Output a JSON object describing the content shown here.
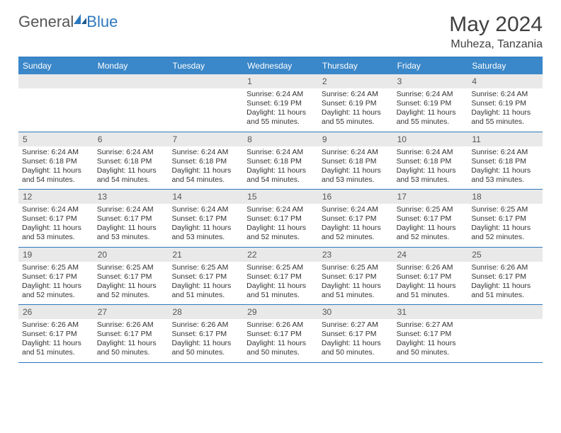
{
  "brand": {
    "part1": "General",
    "part2": "Blue"
  },
  "title": "May 2024",
  "location": "Muheza, Tanzania",
  "colors": {
    "header_bg": "#3a87c9",
    "header_text": "#ffffff",
    "border": "#2c78bd",
    "daynum_bg": "#e9e9e9",
    "logo_blue": "#2c78bd",
    "text": "#333333"
  },
  "day_headers": [
    "Sunday",
    "Monday",
    "Tuesday",
    "Wednesday",
    "Thursday",
    "Friday",
    "Saturday"
  ],
  "weeks": [
    {
      "days": [
        {
          "n": "",
          "lines": [
            "",
            "",
            "",
            ""
          ]
        },
        {
          "n": "",
          "lines": [
            "",
            "",
            "",
            ""
          ]
        },
        {
          "n": "",
          "lines": [
            "",
            "",
            "",
            ""
          ]
        },
        {
          "n": "1",
          "lines": [
            "Sunrise: 6:24 AM",
            "Sunset: 6:19 PM",
            "Daylight: 11 hours",
            "and 55 minutes."
          ]
        },
        {
          "n": "2",
          "lines": [
            "Sunrise: 6:24 AM",
            "Sunset: 6:19 PM",
            "Daylight: 11 hours",
            "and 55 minutes."
          ]
        },
        {
          "n": "3",
          "lines": [
            "Sunrise: 6:24 AM",
            "Sunset: 6:19 PM",
            "Daylight: 11 hours",
            "and 55 minutes."
          ]
        },
        {
          "n": "4",
          "lines": [
            "Sunrise: 6:24 AM",
            "Sunset: 6:19 PM",
            "Daylight: 11 hours",
            "and 55 minutes."
          ]
        }
      ]
    },
    {
      "days": [
        {
          "n": "5",
          "lines": [
            "Sunrise: 6:24 AM",
            "Sunset: 6:18 PM",
            "Daylight: 11 hours",
            "and 54 minutes."
          ]
        },
        {
          "n": "6",
          "lines": [
            "Sunrise: 6:24 AM",
            "Sunset: 6:18 PM",
            "Daylight: 11 hours",
            "and 54 minutes."
          ]
        },
        {
          "n": "7",
          "lines": [
            "Sunrise: 6:24 AM",
            "Sunset: 6:18 PM",
            "Daylight: 11 hours",
            "and 54 minutes."
          ]
        },
        {
          "n": "8",
          "lines": [
            "Sunrise: 6:24 AM",
            "Sunset: 6:18 PM",
            "Daylight: 11 hours",
            "and 54 minutes."
          ]
        },
        {
          "n": "9",
          "lines": [
            "Sunrise: 6:24 AM",
            "Sunset: 6:18 PM",
            "Daylight: 11 hours",
            "and 53 minutes."
          ]
        },
        {
          "n": "10",
          "lines": [
            "Sunrise: 6:24 AM",
            "Sunset: 6:18 PM",
            "Daylight: 11 hours",
            "and 53 minutes."
          ]
        },
        {
          "n": "11",
          "lines": [
            "Sunrise: 6:24 AM",
            "Sunset: 6:18 PM",
            "Daylight: 11 hours",
            "and 53 minutes."
          ]
        }
      ]
    },
    {
      "days": [
        {
          "n": "12",
          "lines": [
            "Sunrise: 6:24 AM",
            "Sunset: 6:17 PM",
            "Daylight: 11 hours",
            "and 53 minutes."
          ]
        },
        {
          "n": "13",
          "lines": [
            "Sunrise: 6:24 AM",
            "Sunset: 6:17 PM",
            "Daylight: 11 hours",
            "and 53 minutes."
          ]
        },
        {
          "n": "14",
          "lines": [
            "Sunrise: 6:24 AM",
            "Sunset: 6:17 PM",
            "Daylight: 11 hours",
            "and 53 minutes."
          ]
        },
        {
          "n": "15",
          "lines": [
            "Sunrise: 6:24 AM",
            "Sunset: 6:17 PM",
            "Daylight: 11 hours",
            "and 52 minutes."
          ]
        },
        {
          "n": "16",
          "lines": [
            "Sunrise: 6:24 AM",
            "Sunset: 6:17 PM",
            "Daylight: 11 hours",
            "and 52 minutes."
          ]
        },
        {
          "n": "17",
          "lines": [
            "Sunrise: 6:25 AM",
            "Sunset: 6:17 PM",
            "Daylight: 11 hours",
            "and 52 minutes."
          ]
        },
        {
          "n": "18",
          "lines": [
            "Sunrise: 6:25 AM",
            "Sunset: 6:17 PM",
            "Daylight: 11 hours",
            "and 52 minutes."
          ]
        }
      ]
    },
    {
      "days": [
        {
          "n": "19",
          "lines": [
            "Sunrise: 6:25 AM",
            "Sunset: 6:17 PM",
            "Daylight: 11 hours",
            "and 52 minutes."
          ]
        },
        {
          "n": "20",
          "lines": [
            "Sunrise: 6:25 AM",
            "Sunset: 6:17 PM",
            "Daylight: 11 hours",
            "and 52 minutes."
          ]
        },
        {
          "n": "21",
          "lines": [
            "Sunrise: 6:25 AM",
            "Sunset: 6:17 PM",
            "Daylight: 11 hours",
            "and 51 minutes."
          ]
        },
        {
          "n": "22",
          "lines": [
            "Sunrise: 6:25 AM",
            "Sunset: 6:17 PM",
            "Daylight: 11 hours",
            "and 51 minutes."
          ]
        },
        {
          "n": "23",
          "lines": [
            "Sunrise: 6:25 AM",
            "Sunset: 6:17 PM",
            "Daylight: 11 hours",
            "and 51 minutes."
          ]
        },
        {
          "n": "24",
          "lines": [
            "Sunrise: 6:26 AM",
            "Sunset: 6:17 PM",
            "Daylight: 11 hours",
            "and 51 minutes."
          ]
        },
        {
          "n": "25",
          "lines": [
            "Sunrise: 6:26 AM",
            "Sunset: 6:17 PM",
            "Daylight: 11 hours",
            "and 51 minutes."
          ]
        }
      ]
    },
    {
      "days": [
        {
          "n": "26",
          "lines": [
            "Sunrise: 6:26 AM",
            "Sunset: 6:17 PM",
            "Daylight: 11 hours",
            "and 51 minutes."
          ]
        },
        {
          "n": "27",
          "lines": [
            "Sunrise: 6:26 AM",
            "Sunset: 6:17 PM",
            "Daylight: 11 hours",
            "and 50 minutes."
          ]
        },
        {
          "n": "28",
          "lines": [
            "Sunrise: 6:26 AM",
            "Sunset: 6:17 PM",
            "Daylight: 11 hours",
            "and 50 minutes."
          ]
        },
        {
          "n": "29",
          "lines": [
            "Sunrise: 6:26 AM",
            "Sunset: 6:17 PM",
            "Daylight: 11 hours",
            "and 50 minutes."
          ]
        },
        {
          "n": "30",
          "lines": [
            "Sunrise: 6:27 AM",
            "Sunset: 6:17 PM",
            "Daylight: 11 hours",
            "and 50 minutes."
          ]
        },
        {
          "n": "31",
          "lines": [
            "Sunrise: 6:27 AM",
            "Sunset: 6:17 PM",
            "Daylight: 11 hours",
            "and 50 minutes."
          ]
        },
        {
          "n": "",
          "lines": [
            "",
            "",
            "",
            ""
          ]
        }
      ]
    }
  ]
}
